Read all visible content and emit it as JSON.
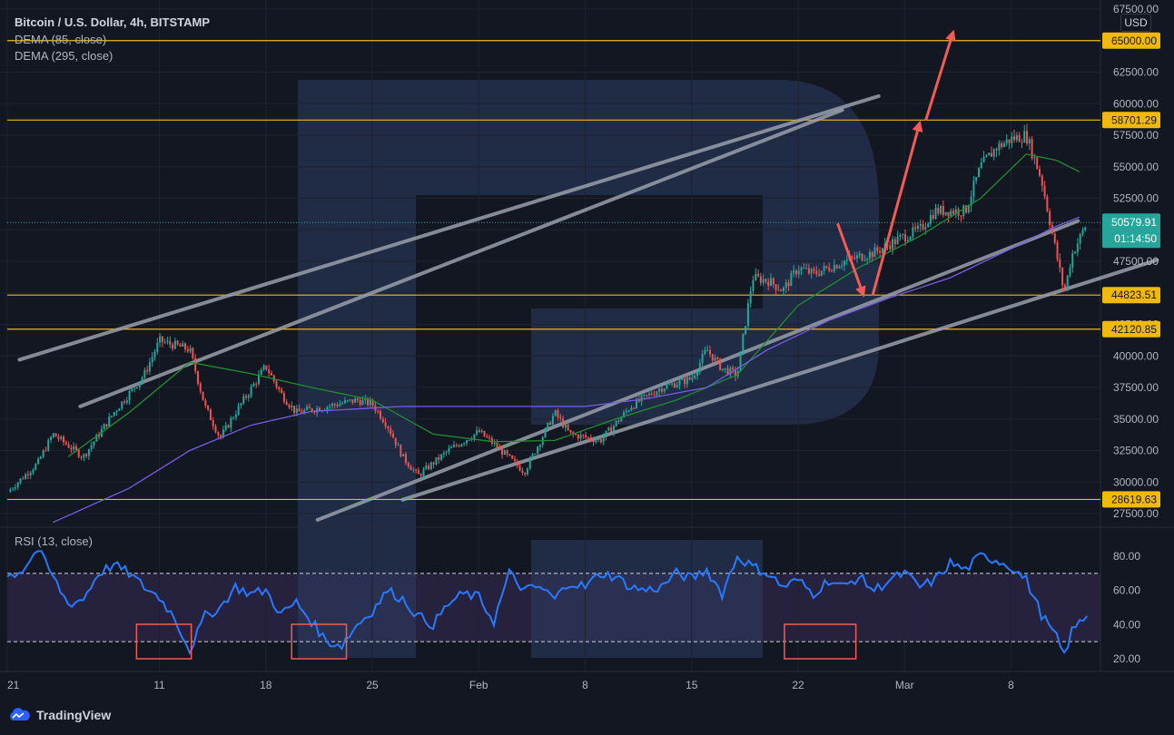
{
  "header": {
    "title": "Bitcoin / U.S. Dollar, 4h, BITSTAMP",
    "indicator_1": "DEMA (85, close)",
    "indicator_2": "DEMA (295, close)",
    "currency": "USD"
  },
  "rsi": {
    "label": "RSI (13, close)"
  },
  "footer": {
    "brand": "TradingView"
  },
  "colors": {
    "background": "#131722",
    "grid": "#1e2230",
    "bull": "#26a69a",
    "bear": "#ef5350",
    "level": "#f0b90b",
    "trend": "#9aa0aa",
    "arrow": "#f25c54",
    "dema85": "#1e8f2e",
    "dema295": "#7a5ce6",
    "rsi": "#2979ff",
    "watermark": "#2b3d63"
  },
  "chart_data": {
    "type": "candlestick",
    "title": "Bitcoin / U.S. Dollar, 4h, BITSTAMP",
    "y_axis": {
      "ticks": [
        "67500.00",
        "65000.00",
        "62500.00",
        "60000.00",
        "57500.00",
        "55000.00",
        "52500.00",
        "50000.00",
        "47500.00",
        "45000.00",
        "42500.00",
        "40000.00",
        "37500.00",
        "35000.00",
        "32500.00",
        "30000.00",
        "27500.00"
      ],
      "range": [
        26000,
        68000
      ]
    },
    "x_axis": {
      "ticks": [
        "21",
        "11",
        "18",
        "25",
        "Feb",
        "8",
        "15",
        "22",
        "Mar",
        "8"
      ]
    },
    "price_levels": [
      {
        "label": "65000.00",
        "value": 65000
      },
      {
        "label": "58701.29",
        "value": 58701.29
      },
      {
        "label": "44823.51",
        "value": 44823.51
      },
      {
        "label": "42120.85",
        "value": 42120.85
      },
      {
        "label": "28619.63",
        "value": 28619.63
      }
    ],
    "current_price": {
      "label": "50579.91",
      "value": 50579.91,
      "countdown": "01:14:50"
    },
    "price_path": [
      {
        "day": 0,
        "price": 29200
      },
      {
        "day": 2,
        "price": 31500
      },
      {
        "day": 3,
        "price": 33800
      },
      {
        "day": 5,
        "price": 32000
      },
      {
        "day": 7,
        "price": 35500
      },
      {
        "day": 9,
        "price": 38500
      },
      {
        "day": 10,
        "price": 41200
      },
      {
        "day": 12,
        "price": 40500
      },
      {
        "day": 13,
        "price": 36000
      },
      {
        "day": 14,
        "price": 33500
      },
      {
        "day": 15,
        "price": 35500
      },
      {
        "day": 17,
        "price": 39200
      },
      {
        "day": 18,
        "price": 37000
      },
      {
        "day": 19,
        "price": 35500
      },
      {
        "day": 21,
        "price": 36000
      },
      {
        "day": 23,
        "price": 36500
      },
      {
        "day": 24,
        "price": 36200
      },
      {
        "day": 25,
        "price": 34500
      },
      {
        "day": 26,
        "price": 32000
      },
      {
        "day": 27,
        "price": 30500
      },
      {
        "day": 29,
        "price": 32500
      },
      {
        "day": 31,
        "price": 34000
      },
      {
        "day": 32,
        "price": 33000
      },
      {
        "day": 34,
        "price": 30800
      },
      {
        "day": 36,
        "price": 35500
      },
      {
        "day": 37,
        "price": 33800
      },
      {
        "day": 39,
        "price": 33300
      },
      {
        "day": 41,
        "price": 36000
      },
      {
        "day": 43,
        "price": 37500
      },
      {
        "day": 45,
        "price": 38200
      },
      {
        "day": 46,
        "price": 40500
      },
      {
        "day": 47,
        "price": 39000
      },
      {
        "day": 48,
        "price": 38500
      },
      {
        "day": 49,
        "price": 46200
      },
      {
        "day": 50,
        "price": 46000
      },
      {
        "day": 51,
        "price": 45200
      },
      {
        "day": 52,
        "price": 47000
      },
      {
        "day": 53,
        "price": 46500
      },
      {
        "day": 55,
        "price": 47500
      },
      {
        "day": 57,
        "price": 48200
      },
      {
        "day": 59,
        "price": 49500
      },
      {
        "day": 60,
        "price": 50000
      },
      {
        "day": 61,
        "price": 51500
      },
      {
        "day": 63,
        "price": 51500
      },
      {
        "day": 64,
        "price": 55000
      },
      {
        "day": 65,
        "price": 56500
      },
      {
        "day": 66,
        "price": 57200
      },
      {
        "day": 67,
        "price": 57500
      },
      {
        "day": 68,
        "price": 54000
      },
      {
        "day": 69,
        "price": 48000
      },
      {
        "day": 69.5,
        "price": 45000
      },
      {
        "day": 70,
        "price": 48000
      },
      {
        "day": 71,
        "price": 50580
      }
    ],
    "dema85": [
      {
        "day": 4,
        "price": 32000
      },
      {
        "day": 8,
        "price": 35500
      },
      {
        "day": 12,
        "price": 39500
      },
      {
        "day": 16,
        "price": 38600
      },
      {
        "day": 20,
        "price": 37500
      },
      {
        "day": 24,
        "price": 36500
      },
      {
        "day": 28,
        "price": 33800
      },
      {
        "day": 32,
        "price": 33200
      },
      {
        "day": 36,
        "price": 33300
      },
      {
        "day": 40,
        "price": 35000
      },
      {
        "day": 44,
        "price": 36500
      },
      {
        "day": 48,
        "price": 38500
      },
      {
        "day": 52,
        "price": 44000
      },
      {
        "day": 56,
        "price": 47000
      },
      {
        "day": 60,
        "price": 49500
      },
      {
        "day": 64,
        "price": 52500
      },
      {
        "day": 67,
        "price": 56000
      },
      {
        "day": 69,
        "price": 55500
      },
      {
        "day": 70.5,
        "price": 54600
      }
    ],
    "dema295": [
      {
        "day": 3,
        "price": 26800
      },
      {
        "day": 8,
        "price": 29500
      },
      {
        "day": 12,
        "price": 32500
      },
      {
        "day": 16,
        "price": 34500
      },
      {
        "day": 20,
        "price": 35600
      },
      {
        "day": 26,
        "price": 36000
      },
      {
        "day": 32,
        "price": 36000
      },
      {
        "day": 38,
        "price": 36000
      },
      {
        "day": 42,
        "price": 36600
      },
      {
        "day": 46,
        "price": 37500
      },
      {
        "day": 50,
        "price": 40500
      },
      {
        "day": 54,
        "price": 42800
      },
      {
        "day": 58,
        "price": 44600
      },
      {
        "day": 62,
        "price": 46200
      },
      {
        "day": 66,
        "price": 48500
      },
      {
        "day": 69,
        "price": 50300
      },
      {
        "day": 70.5,
        "price": 51000
      }
    ],
    "rsi": {
      "y_ticks": [
        "80.00",
        "60.00",
        "40.00",
        "20.00"
      ],
      "range": [
        14,
        90
      ],
      "overbought": 70,
      "oversold": 30,
      "path": [
        {
          "day": 0,
          "price": 68
        },
        {
          "day": 1,
          "price": 72
        },
        {
          "day": 2,
          "price": 84
        },
        {
          "day": 3,
          "price": 68
        },
        {
          "day": 4,
          "price": 52
        },
        {
          "day": 5,
          "price": 55
        },
        {
          "day": 6,
          "price": 70
        },
        {
          "day": 7,
          "price": 75
        },
        {
          "day": 8,
          "price": 70
        },
        {
          "day": 9,
          "price": 62
        },
        {
          "day": 10,
          "price": 56
        },
        {
          "day": 11,
          "price": 44
        },
        {
          "day": 12,
          "price": 25
        },
        {
          "day": 13,
          "price": 45
        },
        {
          "day": 14,
          "price": 50
        },
        {
          "day": 15,
          "price": 62
        },
        {
          "day": 16,
          "price": 58
        },
        {
          "day": 17,
          "price": 60
        },
        {
          "day": 18,
          "price": 46
        },
        {
          "day": 19,
          "price": 53
        },
        {
          "day": 20,
          "price": 42
        },
        {
          "day": 21,
          "price": 30
        },
        {
          "day": 22,
          "price": 28
        },
        {
          "day": 23,
          "price": 40
        },
        {
          "day": 24,
          "price": 48
        },
        {
          "day": 25,
          "price": 60
        },
        {
          "day": 26,
          "price": 55
        },
        {
          "day": 27,
          "price": 45
        },
        {
          "day": 28,
          "price": 40
        },
        {
          "day": 29,
          "price": 52
        },
        {
          "day": 30,
          "price": 58
        },
        {
          "day": 31,
          "price": 56
        },
        {
          "day": 32,
          "price": 42
        },
        {
          "day": 33,
          "price": 70
        },
        {
          "day": 34,
          "price": 60
        },
        {
          "day": 35,
          "price": 62
        },
        {
          "day": 36,
          "price": 55
        },
        {
          "day": 37,
          "price": 65
        },
        {
          "day": 38,
          "price": 62
        },
        {
          "day": 39,
          "price": 70
        },
        {
          "day": 40,
          "price": 68
        },
        {
          "day": 41,
          "price": 62
        },
        {
          "day": 42,
          "price": 60
        },
        {
          "day": 43,
          "price": 62
        },
        {
          "day": 44,
          "price": 70
        },
        {
          "day": 45,
          "price": 67
        },
        {
          "day": 46,
          "price": 72
        },
        {
          "day": 47,
          "price": 58
        },
        {
          "day": 48,
          "price": 80
        },
        {
          "day": 49,
          "price": 74
        },
        {
          "day": 50,
          "price": 70
        },
        {
          "day": 51,
          "price": 62
        },
        {
          "day": 52,
          "price": 66
        },
        {
          "day": 53,
          "price": 58
        },
        {
          "day": 54,
          "price": 66
        },
        {
          "day": 55,
          "price": 62
        },
        {
          "day": 56,
          "price": 68
        },
        {
          "day": 57,
          "price": 60
        },
        {
          "day": 58,
          "price": 66
        },
        {
          "day": 59,
          "price": 70
        },
        {
          "day": 60,
          "price": 62
        },
        {
          "day": 61,
          "price": 66
        },
        {
          "day": 62,
          "price": 76
        },
        {
          "day": 63,
          "price": 72
        },
        {
          "day": 64,
          "price": 80
        },
        {
          "day": 65,
          "price": 78
        },
        {
          "day": 66,
          "price": 74
        },
        {
          "day": 67,
          "price": 66
        },
        {
          "day": 68,
          "price": 46
        },
        {
          "day": 69,
          "price": 32
        },
        {
          "day": 69.5,
          "price": 22
        },
        {
          "day": 70,
          "price": 36
        },
        {
          "day": 71,
          "price": 46
        }
      ]
    }
  }
}
